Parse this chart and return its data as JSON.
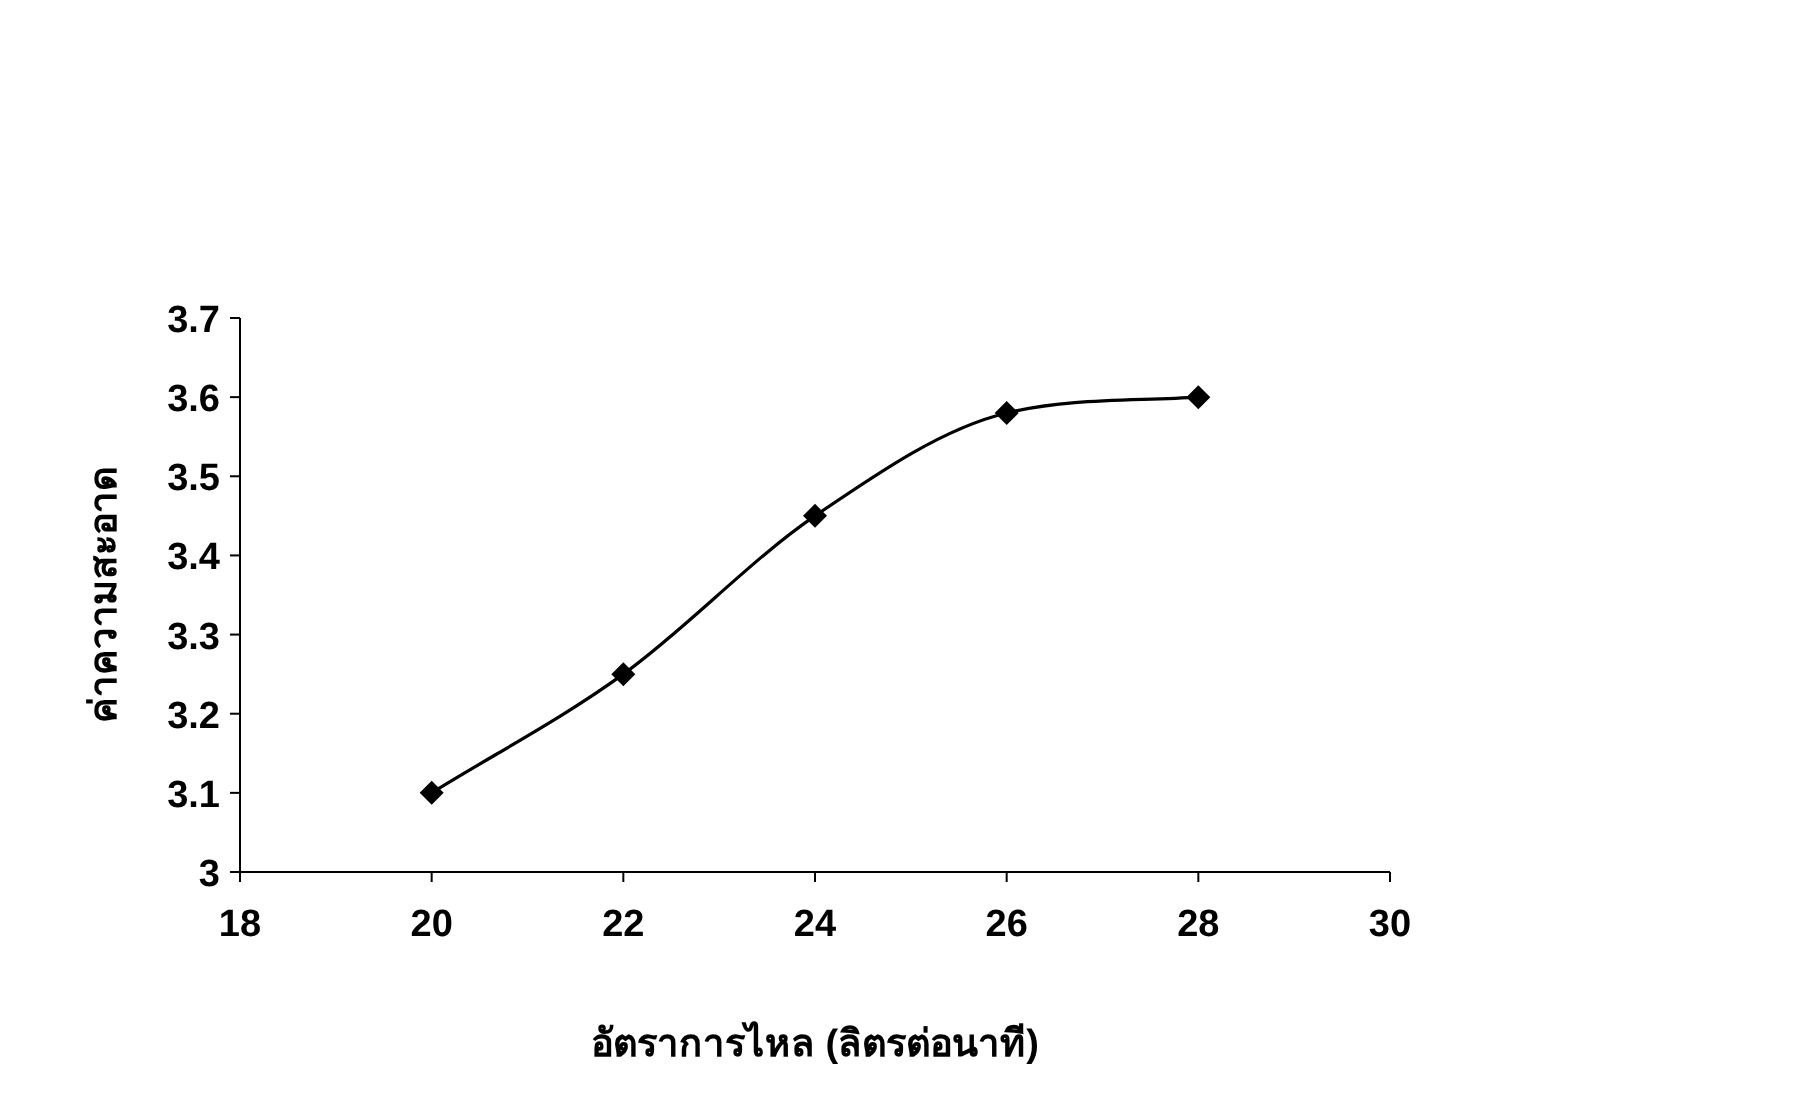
{
  "chart_data": {
    "type": "line",
    "xlabel": "อัตราการไหล (ลิตรต่อนาที)",
    "ylabel": "ค่าความสะอาด",
    "x": [
      20,
      22,
      24,
      26,
      28
    ],
    "series": [
      {
        "color": "#000000",
        "values": [
          3.1,
          3.25,
          3.45,
          3.58,
          3.6
        ]
      }
    ],
    "xlim": [
      18,
      30
    ],
    "xticks": [
      18,
      20,
      22,
      24,
      26,
      28,
      30
    ],
    "ylim": [
      3,
      3.7
    ],
    "yticks": [
      3,
      {
        "value": 3.1,
        "label": "3.1"
      },
      {
        "value": 3.2,
        "label": "3.2"
      },
      {
        "value": 3.3,
        "label": "3.3"
      },
      {
        "value": 3.4,
        "label": "3.4"
      },
      {
        "value": 3.5,
        "label": "3.5"
      },
      {
        "value": 3.6,
        "label": "3.6"
      },
      {
        "value": 3.7,
        "label": "3.7"
      }
    ],
    "marker": "diamond",
    "line_style": "solid",
    "grid": false
  }
}
